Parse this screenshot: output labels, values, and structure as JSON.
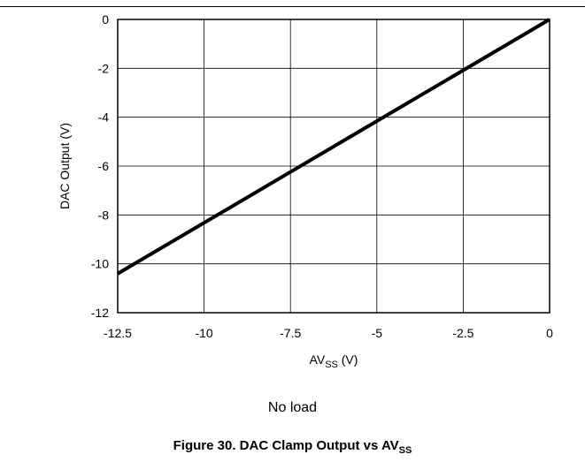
{
  "chart_data": {
    "type": "line",
    "xlabel_main": "AV",
    "xlabel_sub": "SS",
    "xlabel_unit": " (V)",
    "ylabel": "DAC Output (V)",
    "xlim": [
      -12.5,
      0
    ],
    "ylim": [
      -12,
      0
    ],
    "x_ticks": [
      -12.5,
      -10,
      -7.5,
      -5,
      -2.5,
      0
    ],
    "x_tick_labels": [
      "-12.5",
      "-10",
      "-7.5",
      "-5",
      "-2.5",
      "0"
    ],
    "y_ticks": [
      0,
      -2,
      -4,
      -6,
      -8,
      -10,
      -12
    ],
    "y_tick_labels": [
      "0",
      "-2",
      "-4",
      "-6",
      "-8",
      "-10",
      "-12"
    ],
    "grid": true,
    "series": [
      {
        "x": [
          -12.5,
          0
        ],
        "y": [
          -10.4,
          0
        ],
        "color": "#000000"
      }
    ]
  },
  "note": "No load",
  "caption": {
    "prefix": "Figure 30. DAC Clamp Output vs AV",
    "sub": "SS"
  }
}
